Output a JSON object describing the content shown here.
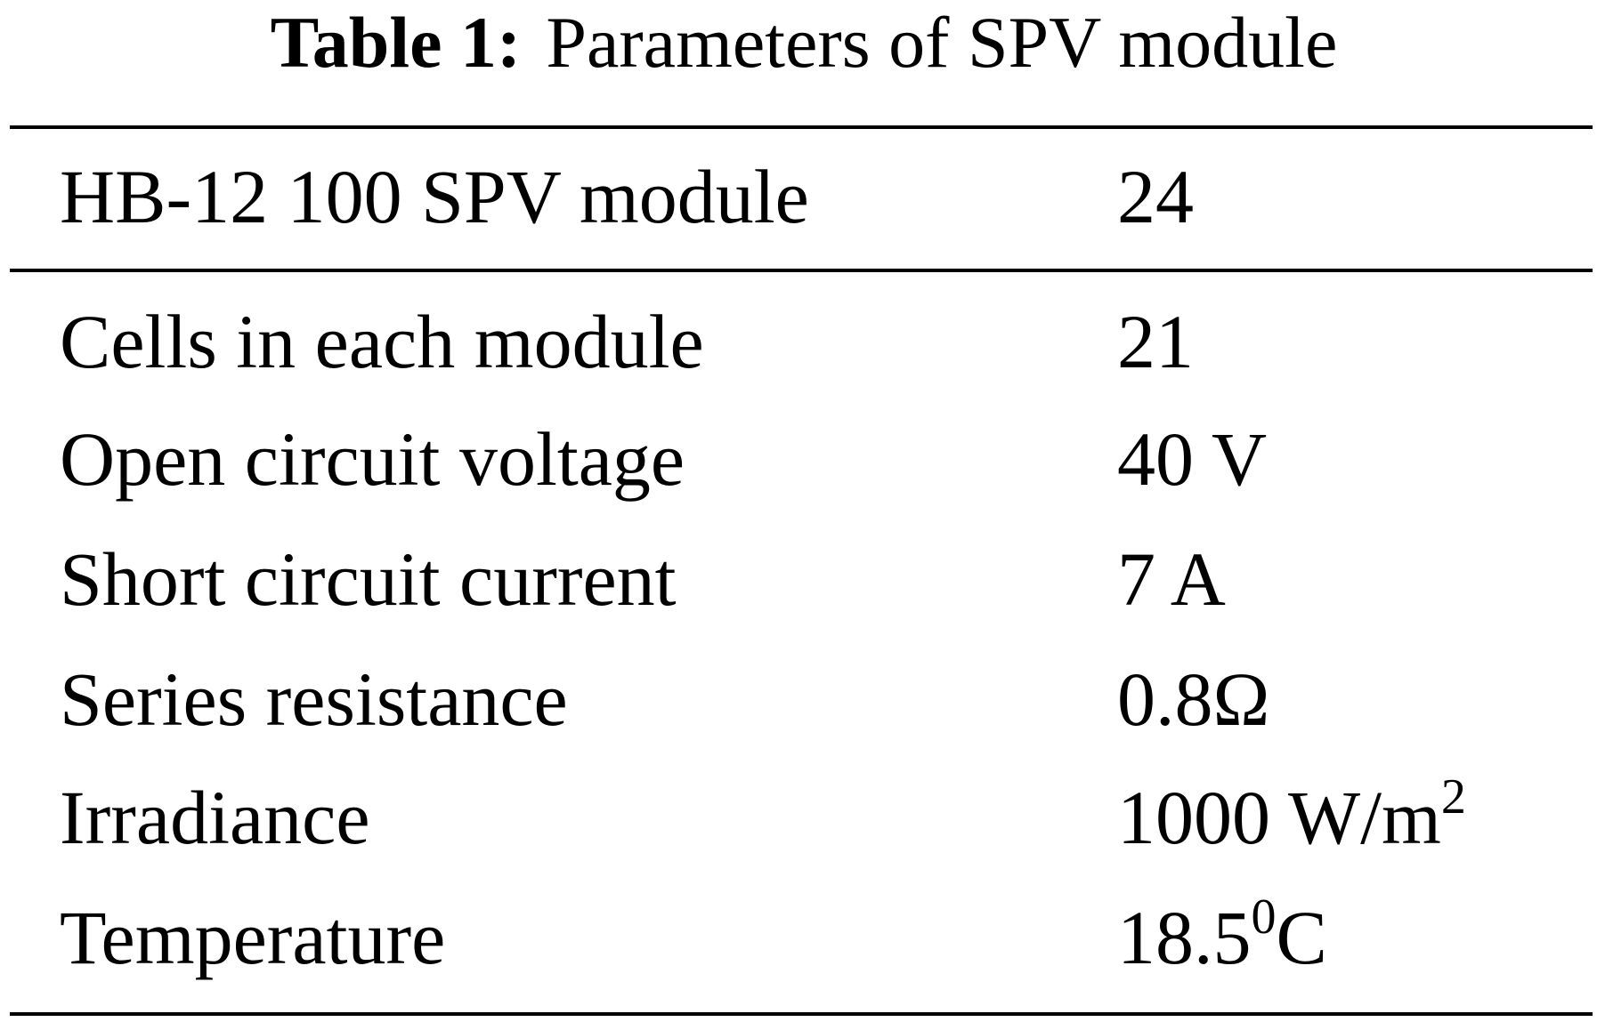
{
  "table": {
    "caption": {
      "label": "Table 1:",
      "text": "Parameters of SPV module"
    },
    "header": [
      "HB-12 100 SPV module",
      "24"
    ],
    "rows": [
      [
        "Cells in each module",
        {
          "text": "21"
        }
      ],
      [
        "Open circuit voltage",
        {
          "text": "40 V"
        }
      ],
      [
        "Short circuit current",
        {
          "text": "7 A"
        }
      ],
      [
        "Series resistance",
        {
          "text": "0.8Ω"
        }
      ],
      [
        "Irradiance",
        {
          "text": "1000 W/m",
          "sup": "2"
        }
      ],
      [
        "Temperature",
        {
          "text": "18.5",
          "sup": "0",
          "tail": "C"
        }
      ]
    ]
  }
}
